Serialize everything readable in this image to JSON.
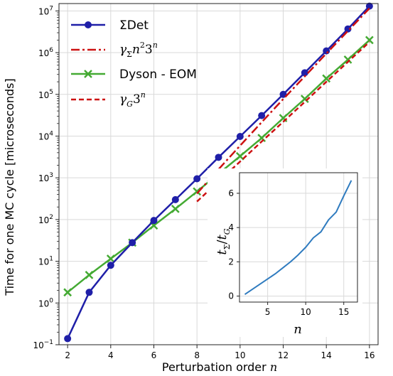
{
  "chart_data": [
    {
      "type": "line",
      "yscale": "log",
      "xlabel_prefix": "Perturbation order ",
      "xlabel_var": "n",
      "ylabel": "Time for one MC cycle [microseconds]",
      "xlim": [
        1.6,
        16.4
      ],
      "ylim": [
        0.1,
        15000000
      ],
      "xticks": [
        2,
        4,
        6,
        8,
        10,
        12,
        14,
        16
      ],
      "xtick_labels": [
        "2",
        "4",
        "6",
        "8",
        "10",
        "12",
        "14",
        "16"
      ],
      "yticks": [
        0.1,
        1,
        10,
        100,
        1000,
        10000,
        100000,
        1000000,
        10000000
      ],
      "ytick_labels": [
        {
          "base": "10",
          "exp": "−1"
        },
        {
          "base": "10",
          "exp": "0"
        },
        {
          "base": "10",
          "exp": "1"
        },
        {
          "base": "10",
          "exp": "2"
        },
        {
          "base": "10",
          "exp": "3"
        },
        {
          "base": "10",
          "exp": "4"
        },
        {
          "base": "10",
          "exp": "5"
        },
        {
          "base": "10",
          "exp": "6"
        },
        {
          "base": "10",
          "exp": "7"
        }
      ],
      "grid": true,
      "legend_position": "top-left",
      "series": [
        {
          "name": "ΣDet",
          "color": "#1f1fa8",
          "marker": "circle",
          "linestyle": "solid",
          "x": [
            2,
            3,
            4,
            5,
            6,
            7,
            8,
            9,
            10,
            11,
            12,
            13,
            14,
            15,
            16
          ],
          "y": [
            0.14,
            1.8,
            8,
            28,
            95,
            300,
            950,
            3100,
            9800,
            31000,
            100000,
            330000,
            1100000,
            3700000,
            13000000
          ]
        },
        {
          "name": "γΣn²3ⁿ",
          "legend_main": "γ",
          "legend_sub": "Σ",
          "legend_rest": "n",
          "legend_sup": "2",
          "legend_tail": "3",
          "legend_sup2": "n",
          "color": "#cc1111",
          "marker": "none",
          "linestyle": "dashdot",
          "x": [
            8,
            9,
            10,
            11,
            12,
            13,
            14,
            15,
            16
          ],
          "y": [
            420,
            1600,
            5900,
            21500,
            77000,
            270000,
            950000,
            3300000,
            11500000
          ]
        },
        {
          "name": "Dyson - EOM",
          "color": "#44aa33",
          "marker": "x",
          "linestyle": "solid",
          "x": [
            2,
            3,
            4,
            5,
            6,
            7,
            8,
            9,
            10,
            11,
            12,
            13,
            14,
            15,
            16
          ],
          "y": [
            1.8,
            4.7,
            11.5,
            28,
            72,
            180,
            470,
            1250,
            3300,
            9000,
            27000,
            78000,
            240000,
            680000,
            2000000
          ]
        },
        {
          "name": "γG3ⁿ",
          "legend_main": "γ",
          "legend_sub": "G",
          "legend_tail": "3",
          "legend_sup2": "n",
          "color": "#cc1111",
          "marker": "none",
          "linestyle": "dashed",
          "x": [
            8,
            9,
            10,
            11,
            12,
            13,
            14,
            15,
            16
          ],
          "y": [
            270,
            820,
            2450,
            7400,
            22000,
            66000,
            200000,
            600000,
            1800000
          ]
        }
      ]
    },
    {
      "type": "line",
      "inset": true,
      "xlabel": "n",
      "ylabel_main": "t",
      "ylabel_sub1": "Σ",
      "ylabel_slash": "/",
      "ylabel_main2": "t",
      "ylabel_sub2": "G",
      "xlim": [
        1.3,
        16.8
      ],
      "ylim": [
        -0.35,
        7.2
      ],
      "xticks": [
        5,
        10,
        15
      ],
      "xtick_labels": [
        "5",
        "10",
        "15"
      ],
      "yticks": [
        0,
        2,
        4,
        6
      ],
      "ytick_labels": [
        "0",
        "2",
        "4",
        "6"
      ],
      "grid": true,
      "series": [
        {
          "name": "",
          "color": "#2f7bbf",
          "x": [
            2,
            3,
            4,
            5,
            6,
            7,
            8,
            9,
            10,
            11,
            12,
            13,
            14,
            15,
            16
          ],
          "y": [
            0.1,
            0.4,
            0.7,
            1.0,
            1.3,
            1.65,
            2.0,
            2.4,
            2.85,
            3.4,
            3.75,
            4.45,
            4.9,
            5.85,
            6.75
          ]
        }
      ]
    }
  ]
}
